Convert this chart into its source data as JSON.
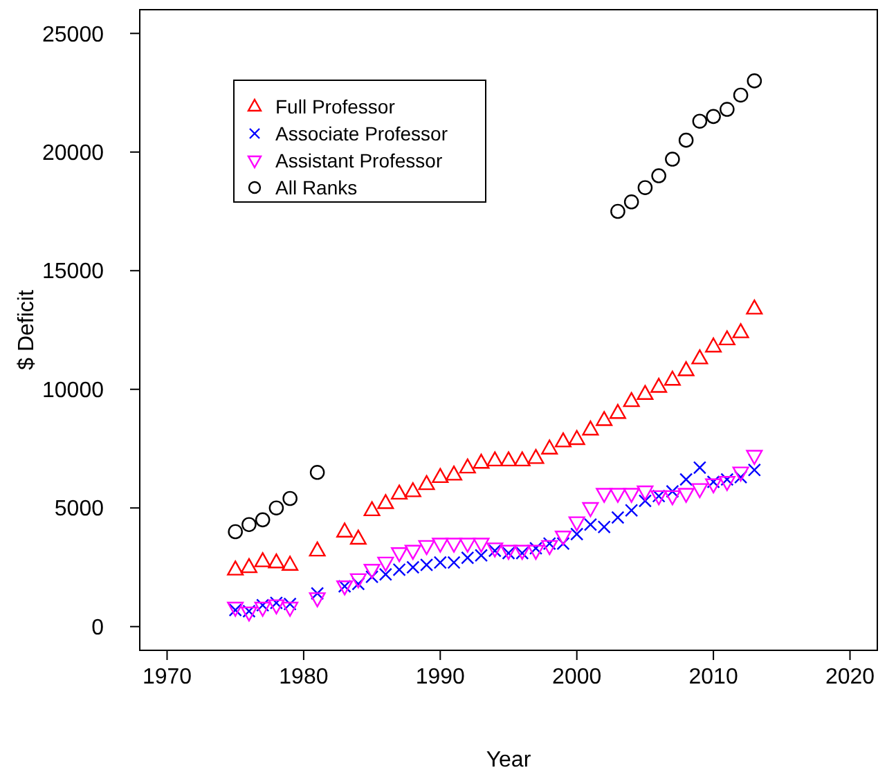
{
  "chart_data": {
    "type": "scatter",
    "xlabel": "Year",
    "ylabel": "$ Deficit",
    "xlim": [
      1968,
      2022
    ],
    "xticks": [
      1970,
      1980,
      1990,
      2000,
      2010,
      2020
    ],
    "ylim": [
      -1000,
      26000
    ],
    "yticks": [
      0,
      5000,
      10000,
      15000,
      20000,
      25000
    ],
    "legend": "top left",
    "grid": false,
    "series": [
      {
        "name": "Full Professor",
        "color": "#ff0000",
        "marker": "triangle",
        "x": [
          1975,
          1976,
          1977,
          1978,
          1979,
          1981,
          1983,
          1984,
          1985,
          1986,
          1987,
          1988,
          1989,
          1990,
          1991,
          1992,
          1993,
          1994,
          1995,
          1996,
          1997,
          1998,
          1999,
          2000,
          2001,
          2002,
          2003,
          2004,
          2005,
          2006,
          2007,
          2008,
          2009,
          2010,
          2011,
          2012,
          2013
        ],
        "values": [
          2400,
          2500,
          2750,
          2700,
          2600,
          3200,
          4000,
          3700,
          4900,
          5200,
          5600,
          5700,
          6000,
          6300,
          6400,
          6700,
          6900,
          7000,
          7000,
          7000,
          7100,
          7500,
          7800,
          7900,
          8300,
          8700,
          9000,
          9500,
          9800,
          10100,
          10400,
          10800,
          11300,
          11800,
          12100,
          12400,
          13400
        ]
      },
      {
        "name": "Associate Professor",
        "color": "#0000ff",
        "marker": "cross",
        "x": [
          1975,
          1976,
          1977,
          1978,
          1979,
          1981,
          1983,
          1984,
          1985,
          1986,
          1987,
          1988,
          1989,
          1990,
          1991,
          1992,
          1993,
          1994,
          1995,
          1996,
          1997,
          1998,
          1999,
          2000,
          2001,
          2002,
          2003,
          2004,
          2005,
          2006,
          2007,
          2008,
          2009,
          2010,
          2011,
          2012,
          2013
        ],
        "values": [
          700,
          650,
          900,
          1000,
          950,
          1400,
          1700,
          1800,
          2100,
          2200,
          2400,
          2500,
          2600,
          2700,
          2700,
          2900,
          3000,
          3200,
          3100,
          3100,
          3300,
          3500,
          3500,
          3900,
          4300,
          4200,
          4600,
          4900,
          5300,
          5500,
          5700,
          6200,
          6700,
          6100,
          6200,
          6300,
          6600
        ]
      },
      {
        "name": "Assistant Professor",
        "color": "#ff00ff",
        "marker": "triangle-down",
        "x": [
          1975,
          1976,
          1977,
          1978,
          1979,
          1981,
          1983,
          1984,
          1985,
          1986,
          1987,
          1988,
          1989,
          1990,
          1991,
          1992,
          1993,
          1994,
          1995,
          1996,
          1997,
          1998,
          1999,
          2000,
          2001,
          2002,
          2003,
          2004,
          2005,
          2006,
          2007,
          2008,
          2009,
          2010,
          2011,
          2012,
          2013
        ],
        "values": [
          800,
          600,
          800,
          900,
          800,
          1200,
          1700,
          2000,
          2400,
          2700,
          3100,
          3200,
          3400,
          3500,
          3500,
          3500,
          3500,
          3300,
          3200,
          3200,
          3200,
          3400,
          3800,
          4400,
          5000,
          5600,
          5600,
          5600,
          5700,
          5500,
          5500,
          5600,
          5800,
          6000,
          6100,
          6500,
          7200
        ]
      },
      {
        "name": "All Ranks",
        "color": "#000000",
        "marker": "circle",
        "x": [
          1975,
          1976,
          1977,
          1978,
          1979,
          1981,
          2003,
          2004,
          2005,
          2006,
          2007,
          2008,
          2009,
          2010,
          2011,
          2012,
          2013
        ],
        "values": [
          4000,
          4300,
          4500,
          5000,
          5400,
          6500,
          17500,
          17900,
          18500,
          19000,
          19700,
          20500,
          21300,
          21500,
          21800,
          22400,
          23000
        ]
      }
    ]
  }
}
